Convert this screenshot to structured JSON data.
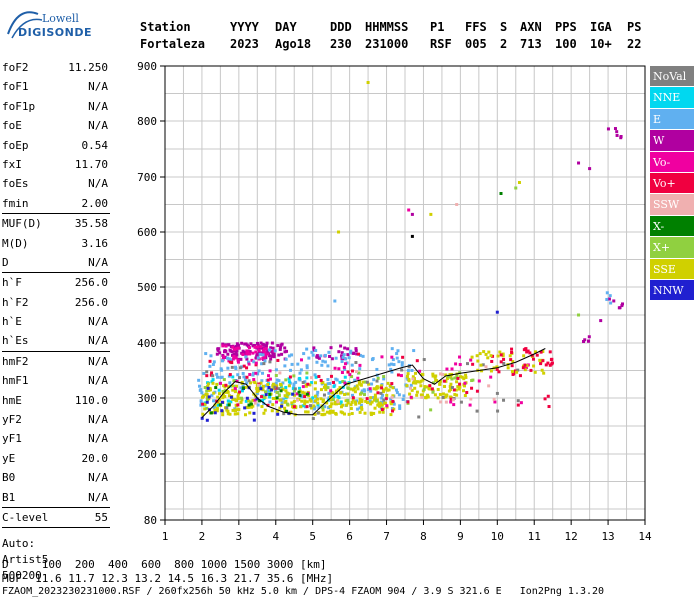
{
  "logo": {
    "brand_top": "Lowell",
    "brand_bottom": "DIGISONDE"
  },
  "header": {
    "labels": [
      "Station",
      "YYYY",
      "DAY",
      "DDD",
      "HHMMSS",
      "P1",
      "FFS",
      "S",
      "AXN",
      "PPS",
      "IGA",
      "PS"
    ],
    "values": [
      "Fortaleza",
      "2023",
      "Ago18",
      "230",
      "231000",
      "RSF",
      "005",
      "2",
      "713",
      "100",
      "10+",
      "22"
    ]
  },
  "params": [
    {
      "k": "foF2",
      "v": "11.250"
    },
    {
      "k": "foF1",
      "v": "N/A"
    },
    {
      "k": "foF1p",
      "v": "N/A"
    },
    {
      "k": "foE",
      "v": "N/A"
    },
    {
      "k": "foEp",
      "v": "0.54"
    },
    {
      "k": "fxI",
      "v": "11.70"
    },
    {
      "k": "foEs",
      "v": "N/A"
    },
    {
      "k": "fmin",
      "v": "2.00"
    },
    {
      "k": "MUF(D)",
      "v": "35.58"
    },
    {
      "k": "M(D)",
      "v": "3.16"
    },
    {
      "k": "D",
      "v": "N/A"
    },
    {
      "k": "h`F",
      "v": "256.0"
    },
    {
      "k": "h`F2",
      "v": "256.0"
    },
    {
      "k": "h`E",
      "v": "N/A"
    },
    {
      "k": "h`Es",
      "v": "N/A"
    },
    {
      "k": "hmF2",
      "v": "N/A"
    },
    {
      "k": "hmF1",
      "v": "N/A"
    },
    {
      "k": "hmE",
      "v": "110.0"
    },
    {
      "k": "yF2",
      "v": "N/A"
    },
    {
      "k": "yF1",
      "v": "N/A"
    },
    {
      "k": "yE",
      "v": "20.0"
    },
    {
      "k": "B0",
      "v": "N/A"
    },
    {
      "k": "B1",
      "v": "N/A"
    },
    {
      "k": "C-level",
      "v": "55"
    }
  ],
  "auto": [
    "Auto:",
    "Artist5",
    "500200"
  ],
  "legend": [
    {
      "label": "NoVal",
      "color": "#808080"
    },
    {
      "label": "NNE",
      "color": "#00d8f0"
    },
    {
      "label": "E",
      "color": "#60b0f0"
    },
    {
      "label": "W",
      "color": "#b000a0"
    },
    {
      "label": "Vo-",
      "color": "#f000a0"
    },
    {
      "label": "Vo+",
      "color": "#f00040"
    },
    {
      "label": "SSW",
      "color": "#f0b0b0"
    },
    {
      "label": "X-",
      "color": "#008000"
    },
    {
      "label": "X+",
      "color": "#90d040"
    },
    {
      "label": "SSE",
      "color": "#d0d000"
    },
    {
      "label": "NNW",
      "color": "#2020d0"
    }
  ],
  "chart_data": {
    "type": "scatter",
    "title": "",
    "xlabel": "",
    "ylabel": "",
    "xlim": [
      1,
      14
    ],
    "ylim": [
      80,
      900
    ],
    "x_ticks": [
      1,
      2,
      3,
      4,
      5,
      6,
      7,
      8,
      9,
      10,
      11,
      12,
      13,
      14
    ],
    "y_ticks": [
      80,
      200,
      300,
      400,
      500,
      600,
      700,
      800,
      900
    ],
    "grid": true,
    "trace_line": {
      "name": "",
      "points": [
        [
          2.0,
          265
        ],
        [
          2.3,
          285
        ],
        [
          2.6,
          310
        ],
        [
          2.9,
          330
        ],
        [
          3.2,
          325
        ],
        [
          3.5,
          300
        ],
        [
          3.8,
          285
        ],
        [
          4.2,
          275
        ],
        [
          4.6,
          270
        ],
        [
          5.0,
          270
        ],
        [
          5.4,
          295
        ],
        [
          5.9,
          325
        ],
        [
          6.4,
          335
        ],
        [
          6.9,
          345
        ],
        [
          7.4,
          355
        ],
        [
          7.7,
          360
        ],
        [
          8.0,
          335
        ],
        [
          8.3,
          325
        ],
        [
          8.6,
          340
        ],
        [
          9.0,
          345
        ],
        [
          9.5,
          350
        ],
        [
          10.0,
          355
        ],
        [
          10.5,
          365
        ],
        [
          11.0,
          380
        ],
        [
          11.3,
          390
        ]
      ]
    },
    "clusters": [
      {
        "color": "#b000a0",
        "x": [
          2.4,
          4.3
        ],
        "y": [
          370,
          400
        ],
        "n": 120
      },
      {
        "color": "#f000a0",
        "x": [
          2.5,
          4.0
        ],
        "y": [
          365,
          395
        ],
        "n": 40
      },
      {
        "color": "#b000a0",
        "x": [
          5.0,
          6.2
        ],
        "y": [
          370,
          395
        ],
        "n": 25
      },
      {
        "color": "#60b0f0",
        "x": [
          1.9,
          7.8
        ],
        "y": [
          280,
          390
        ],
        "n": 230
      },
      {
        "color": "#00d8f0",
        "x": [
          2.0,
          6.0
        ],
        "y": [
          285,
          340
        ],
        "n": 60
      },
      {
        "color": "#d0d000",
        "x": [
          2.0,
          7.2
        ],
        "y": [
          270,
          330
        ],
        "n": 320
      },
      {
        "color": "#d0d000",
        "x": [
          7.5,
          9.2
        ],
        "y": [
          300,
          345
        ],
        "n": 90
      },
      {
        "color": "#90d040",
        "x": [
          2.0,
          9.5
        ],
        "y": [
          275,
          350
        ],
        "n": 50
      },
      {
        "color": "#f00040",
        "x": [
          2.0,
          11.5
        ],
        "y": [
          275,
          380
        ],
        "n": 70
      },
      {
        "color": "#f000a0",
        "x": [
          2.5,
          11.0
        ],
        "y": [
          285,
          375
        ],
        "n": 50
      },
      {
        "color": "#2020d0",
        "x": [
          2.0,
          4.5
        ],
        "y": [
          260,
          320
        ],
        "n": 25
      },
      {
        "color": "#808080",
        "x": [
          2.0,
          11.0
        ],
        "y": [
          260,
          370
        ],
        "n": 40
      },
      {
        "color": "#f0b0b0",
        "x": [
          3.0,
          10.0
        ],
        "y": [
          290,
          360
        ],
        "n": 20
      },
      {
        "color": "#008000",
        "x": [
          2.0,
          5.0
        ],
        "y": [
          270,
          320
        ],
        "n": 15
      },
      {
        "color": "#d0d000",
        "x": [
          9.3,
          11.3
        ],
        "y": [
          345,
          385
        ],
        "n": 40
      },
      {
        "color": "#f00040",
        "x": [
          10.0,
          11.5
        ],
        "y": [
          350,
          390
        ],
        "n": 30
      },
      {
        "color": "#b000a0",
        "x": [
          13.0,
          13.4
        ],
        "y": [
          760,
          790
        ],
        "n": 6
      },
      {
        "color": "#b000a0",
        "x": [
          13.0,
          13.4
        ],
        "y": [
          460,
          485
        ],
        "n": 6
      },
      {
        "color": "#b000a0",
        "x": [
          12.2,
          12.5
        ],
        "y": [
          400,
          420
        ],
        "n": 5
      },
      {
        "color": "#60b0f0",
        "x": [
          12.9,
          13.1
        ],
        "y": [
          470,
          495
        ],
        "n": 4
      }
    ],
    "outliers": [
      {
        "x": 6.5,
        "y": 870,
        "color": "#d0d000"
      },
      {
        "x": 7.6,
        "y": 640,
        "color": "#f000a0"
      },
      {
        "x": 7.7,
        "y": 632,
        "color": "#b000a0"
      },
      {
        "x": 8.2,
        "y": 632,
        "color": "#d0d000"
      },
      {
        "x": 8.9,
        "y": 650,
        "color": "#f0b0b0"
      },
      {
        "x": 7.7,
        "y": 592,
        "color": "#000000"
      },
      {
        "x": 5.7,
        "y": 600,
        "color": "#d0d000"
      },
      {
        "x": 10.1,
        "y": 670,
        "color": "#008000"
      },
      {
        "x": 10.5,
        "y": 680,
        "color": "#90d040"
      },
      {
        "x": 10.6,
        "y": 690,
        "color": "#d0d000"
      },
      {
        "x": 12.2,
        "y": 725,
        "color": "#b000a0"
      },
      {
        "x": 12.5,
        "y": 715,
        "color": "#b000a0"
      },
      {
        "x": 5.6,
        "y": 475,
        "color": "#60b0f0"
      },
      {
        "x": 10.0,
        "y": 455,
        "color": "#2020d0"
      },
      {
        "x": 12.2,
        "y": 450,
        "color": "#90d040"
      },
      {
        "x": 12.8,
        "y": 440,
        "color": "#b000a0"
      }
    ]
  },
  "bottom": {
    "d_row": "D     100  200  400  600  800 1000 1500 3000 [km]",
    "muf_row": "MUF  11.6 11.7 12.3 13.2 14.5 16.3 21.7 35.6 [MHz]",
    "footer": "FZAOM_2023230231000.RSF / 260fx256h 50 kHz 5.0 km / DPS-4 FZAOM 904 / 3.9 S 321.6 E   Ion2Png 1.3.20"
  }
}
